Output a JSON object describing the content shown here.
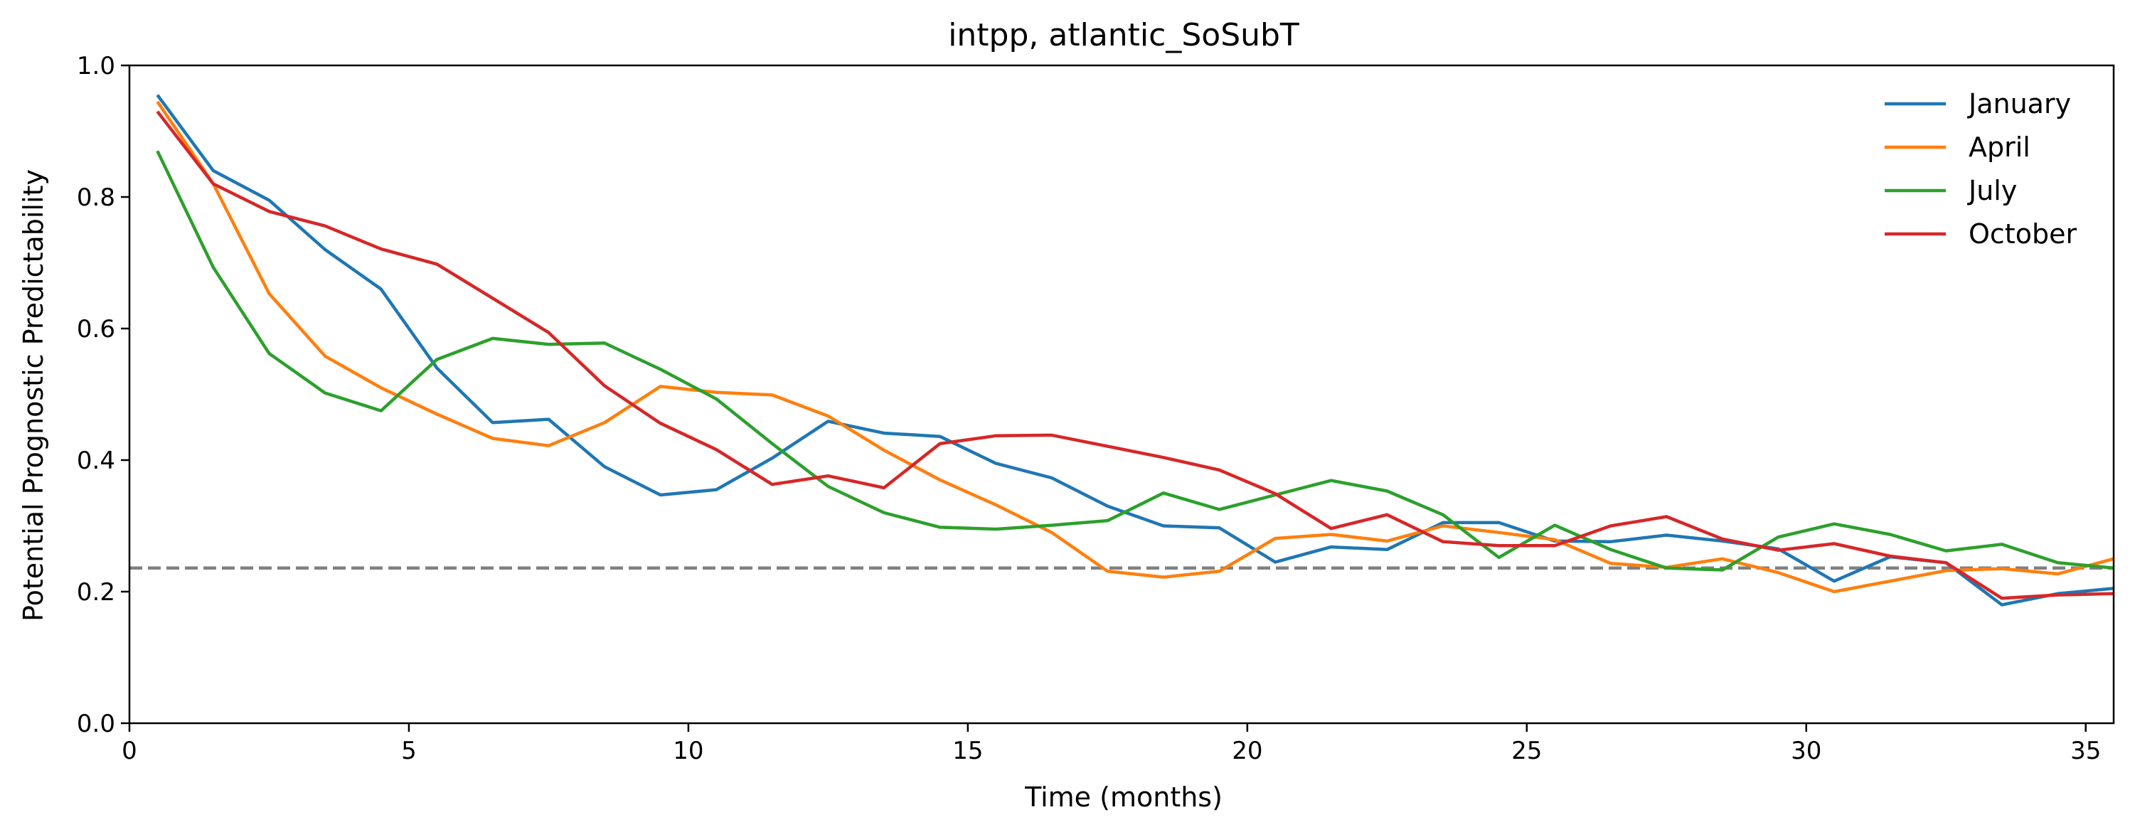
{
  "chart_data": {
    "type": "line",
    "title": "intpp, atlantic_SoSubT",
    "xlabel": "Time (months)",
    "ylabel": "Potential Prognostic Predictability",
    "xlim": [
      0,
      35.5
    ],
    "ylim": [
      0,
      1.0
    ],
    "xticks": [
      0,
      5,
      10,
      15,
      20,
      25,
      30,
      35
    ],
    "xtick_labels": [
      "0",
      "5",
      "10",
      "15",
      "20",
      "25",
      "30",
      "35"
    ],
    "yticks": [
      0.0,
      0.2,
      0.4,
      0.6,
      0.8,
      1.0
    ],
    "ytick_labels": [
      "0.0",
      "0.2",
      "0.4",
      "0.6",
      "0.8",
      "1.0"
    ],
    "grid": false,
    "legend_position": "top-right",
    "x": [
      0.5,
      1.5,
      2.5,
      3.5,
      4.5,
      5.5,
      6.5,
      7.5,
      8.5,
      9.5,
      10.5,
      11.5,
      12.5,
      13.5,
      14.5,
      15.5,
      16.5,
      17.5,
      18.5,
      19.5,
      20.5,
      21.5,
      22.5,
      23.5,
      24.5,
      25.5,
      26.5,
      27.5,
      28.5,
      29.5,
      30.5,
      31.5,
      32.5,
      33.5,
      34.5,
      35.5
    ],
    "series": [
      {
        "name": "January",
        "color": "#1f77b4",
        "values": [
          0.955,
          0.84,
          0.795,
          0.72,
          0.66,
          0.54,
          0.457,
          0.462,
          0.39,
          0.347,
          0.355,
          0.403,
          0.459,
          0.441,
          0.436,
          0.395,
          0.373,
          0.33,
          0.3,
          0.297,
          0.245,
          0.268,
          0.264,
          0.305,
          0.305,
          0.277,
          0.276,
          0.286,
          0.277,
          0.265,
          0.216,
          0.253,
          0.244,
          0.18,
          0.197,
          0.205
        ]
      },
      {
        "name": "April",
        "color": "#ff7f0e",
        "values": [
          0.945,
          0.82,
          0.653,
          0.558,
          0.51,
          0.47,
          0.433,
          0.422,
          0.457,
          0.512,
          0.503,
          0.499,
          0.467,
          0.415,
          0.37,
          0.332,
          0.29,
          0.231,
          0.222,
          0.231,
          0.281,
          0.287,
          0.277,
          0.3,
          0.29,
          0.279,
          0.243,
          0.237,
          0.25,
          0.229,
          0.2,
          0.216,
          0.232,
          0.235,
          0.227,
          0.25
        ]
      },
      {
        "name": "July",
        "color": "#2ca02c",
        "values": [
          0.87,
          0.693,
          0.562,
          0.502,
          0.475,
          0.553,
          0.585,
          0.576,
          0.578,
          0.538,
          0.493,
          0.425,
          0.36,
          0.32,
          0.298,
          0.295,
          0.301,
          0.308,
          0.35,
          0.325,
          0.347,
          0.369,
          0.353,
          0.317,
          0.252,
          0.301,
          0.264,
          0.236,
          0.233,
          0.283,
          0.303,
          0.287,
          0.262,
          0.272,
          0.244,
          0.236
        ]
      },
      {
        "name": "October",
        "color": "#d62728",
        "values": [
          0.93,
          0.82,
          0.778,
          0.756,
          0.721,
          0.698,
          0.646,
          0.594,
          0.513,
          0.456,
          0.416,
          0.363,
          0.376,
          0.358,
          0.425,
          0.437,
          0.438,
          0.421,
          0.404,
          0.385,
          0.349,
          0.296,
          0.317,
          0.276,
          0.27,
          0.27,
          0.3,
          0.314,
          0.28,
          0.263,
          0.273,
          0.254,
          0.244,
          0.19,
          0.195,
          0.197
        ]
      }
    ],
    "reference_line": {
      "y": 0.236,
      "color": "#808080",
      "style": "dashed"
    }
  }
}
